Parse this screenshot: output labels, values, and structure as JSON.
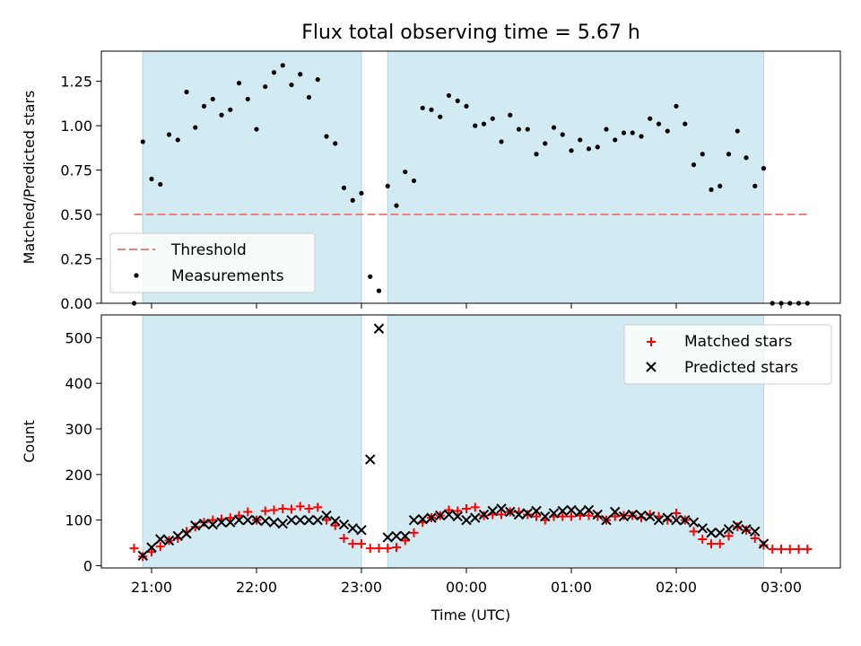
{
  "figure": {
    "title": "Flux total observing time = 5.67 h",
    "xlabel": "Time (UTC)"
  },
  "colors": {
    "shade": "#add8e6",
    "threshold": "#f08080",
    "matched": "#ff0000",
    "predicted": "#000000",
    "measurement": "#000000"
  },
  "chart_data": [
    {
      "type": "scatter",
      "name": "ratio-panel",
      "ylabel": "Matched/Predicted stars",
      "ylim": [
        0,
        1.42
      ],
      "yticks": [
        "0.00",
        "0.25",
        "0.50",
        "0.75",
        "1.00",
        "1.25"
      ],
      "threshold": {
        "label": "Threshold",
        "value": 0.5,
        "x_start": "20:50",
        "x_end": "03:15"
      },
      "legend": {
        "placement": "lower-left",
        "entries": [
          "Threshold",
          "Measurements"
        ]
      },
      "shaded_periods": [
        [
          "20:55",
          "23:00"
        ],
        [
          "23:15",
          "02:50"
        ]
      ],
      "series": [
        {
          "name": "Measurements",
          "x": [
            "20:50",
            "20:55",
            "21:00",
            "21:05",
            "21:10",
            "21:15",
            "21:20",
            "21:25",
            "21:30",
            "21:35",
            "21:40",
            "21:45",
            "21:50",
            "21:55",
            "22:00",
            "22:05",
            "22:10",
            "22:15",
            "22:20",
            "22:25",
            "22:30",
            "22:35",
            "22:40",
            "22:45",
            "22:50",
            "22:55",
            "23:00",
            "23:05",
            "23:10",
            "23:15",
            "23:20",
            "23:25",
            "23:30",
            "23:35",
            "23:40",
            "23:45",
            "23:50",
            "23:55",
            "00:00",
            "00:05",
            "00:10",
            "00:15",
            "00:20",
            "00:25",
            "00:30",
            "00:35",
            "00:40",
            "00:45",
            "00:50",
            "00:55",
            "01:00",
            "01:05",
            "01:10",
            "01:15",
            "01:20",
            "01:25",
            "01:30",
            "01:35",
            "01:40",
            "01:45",
            "01:50",
            "01:55",
            "02:00",
            "02:05",
            "02:10",
            "02:15",
            "02:20",
            "02:25",
            "02:30",
            "02:35",
            "02:40",
            "02:45",
            "02:50",
            "02:55",
            "03:00",
            "03:05",
            "03:10",
            "03:15"
          ],
          "y": [
            0.0,
            0.91,
            0.7,
            0.67,
            0.95,
            0.92,
            1.19,
            0.99,
            1.11,
            1.15,
            1.06,
            1.09,
            1.24,
            1.15,
            0.98,
            1.22,
            1.3,
            1.34,
            1.23,
            1.29,
            1.16,
            1.26,
            0.94,
            0.9,
            0.65,
            0.58,
            0.62,
            0.15,
            0.07,
            0.66,
            0.55,
            0.74,
            0.69,
            1.1,
            1.09,
            1.05,
            1.17,
            1.14,
            1.11,
            1.0,
            1.01,
            1.04,
            0.91,
            1.06,
            0.98,
            0.98,
            0.84,
            0.9,
            0.99,
            0.95,
            0.86,
            0.92,
            0.87,
            0.88,
            0.98,
            0.92,
            0.96,
            0.96,
            0.94,
            1.04,
            1.01,
            0.97,
            1.11,
            1.01,
            0.78,
            0.84,
            0.64,
            0.66,
            0.84,
            0.97,
            0.82,
            0.66,
            0.76,
            0.0,
            0.0,
            0.0,
            0.0,
            0.0
          ]
        }
      ]
    },
    {
      "type": "scatter",
      "name": "count-panel",
      "ylabel": "Count",
      "ylim": [
        -5,
        550
      ],
      "yticks": [
        "0",
        "100",
        "200",
        "300",
        "400",
        "500"
      ],
      "xticks": [
        "21:00",
        "22:00",
        "23:00",
        "00:00",
        "01:00",
        "02:00",
        "03:00"
      ],
      "legend": {
        "placement": "upper-right",
        "entries": [
          "Matched stars",
          "Predicted stars"
        ]
      },
      "shaded_periods": [
        [
          "20:55",
          "23:00"
        ],
        [
          "23:15",
          "02:50"
        ]
      ],
      "series": [
        {
          "name": "Matched stars",
          "x": [
            "20:50",
            "20:55",
            "21:00",
            "21:05",
            "21:10",
            "21:15",
            "21:20",
            "21:25",
            "21:30",
            "21:35",
            "21:40",
            "21:45",
            "21:50",
            "21:55",
            "22:00",
            "22:05",
            "22:10",
            "22:15",
            "22:20",
            "22:25",
            "22:30",
            "22:35",
            "22:40",
            "22:45",
            "22:50",
            "22:55",
            "23:00",
            "23:05",
            "23:10",
            "23:15",
            "23:20",
            "23:25",
            "23:30",
            "23:35",
            "23:40",
            "23:45",
            "23:50",
            "23:55",
            "00:00",
            "00:05",
            "00:10",
            "00:15",
            "00:20",
            "00:25",
            "00:30",
            "00:35",
            "00:40",
            "00:45",
            "00:50",
            "00:55",
            "01:00",
            "01:05",
            "01:10",
            "01:15",
            "01:20",
            "01:25",
            "01:30",
            "01:35",
            "01:40",
            "01:45",
            "01:50",
            "01:55",
            "02:00",
            "02:05",
            "02:10",
            "02:15",
            "02:20",
            "02:25",
            "02:30",
            "02:35",
            "02:40",
            "02:45",
            "02:50",
            "02:55",
            "03:00",
            "03:05",
            "03:10",
            "03:15"
          ],
          "y": [
            38,
            20,
            30,
            42,
            55,
            60,
            75,
            85,
            95,
            100,
            102,
            105,
            110,
            118,
            100,
            120,
            122,
            125,
            124,
            130,
            125,
            128,
            100,
            88,
            60,
            48,
            48,
            38,
            38,
            38,
            40,
            55,
            72,
            95,
            105,
            110,
            122,
            120,
            125,
            128,
            110,
            112,
            112,
            118,
            118,
            112,
            108,
            100,
            108,
            108,
            108,
            110,
            110,
            108,
            100,
            108,
            110,
            110,
            105,
            112,
            108,
            100,
            115,
            100,
            75,
            58,
            48,
            48,
            65,
            85,
            78,
            60,
            45,
            36,
            36,
            36,
            36,
            36
          ]
        },
        {
          "name": "Predicted stars",
          "x": [
            "20:55",
            "21:00",
            "21:05",
            "21:10",
            "21:15",
            "21:20",
            "21:25",
            "21:30",
            "21:35",
            "21:40",
            "21:45",
            "21:50",
            "21:55",
            "22:00",
            "22:05",
            "22:10",
            "22:15",
            "22:20",
            "22:25",
            "22:30",
            "22:35",
            "22:40",
            "22:45",
            "22:50",
            "22:55",
            "23:00",
            "23:05",
            "23:10",
            "23:15",
            "23:20",
            "23:25",
            "23:30",
            "23:35",
            "23:40",
            "23:45",
            "23:50",
            "23:55",
            "00:00",
            "00:05",
            "00:10",
            "00:15",
            "00:20",
            "00:25",
            "00:30",
            "00:35",
            "00:40",
            "00:45",
            "00:50",
            "00:55",
            "01:00",
            "01:05",
            "01:10",
            "01:15",
            "01:20",
            "01:25",
            "01:30",
            "01:35",
            "01:40",
            "01:45",
            "01:50",
            "01:55",
            "02:00",
            "02:05",
            "02:10",
            "02:15",
            "02:20",
            "02:25",
            "02:30",
            "02:35",
            "02:40",
            "02:45",
            "02:50"
          ],
          "y": [
            22,
            40,
            58,
            55,
            65,
            70,
            88,
            92,
            90,
            95,
            95,
            100,
            100,
            100,
            98,
            95,
            92,
            100,
            100,
            100,
            100,
            110,
            98,
            90,
            82,
            78,
            233,
            520,
            62,
            65,
            65,
            100,
            102,
            105,
            110,
            112,
            108,
            100,
            105,
            112,
            120,
            125,
            118,
            112,
            115,
            120,
            108,
            115,
            120,
            122,
            118,
            122,
            112,
            100,
            118,
            108,
            112,
            110,
            108,
            100,
            105,
            100,
            100,
            95,
            82,
            72,
            72,
            80,
            88,
            80,
            75,
            48
          ]
        }
      ]
    }
  ]
}
